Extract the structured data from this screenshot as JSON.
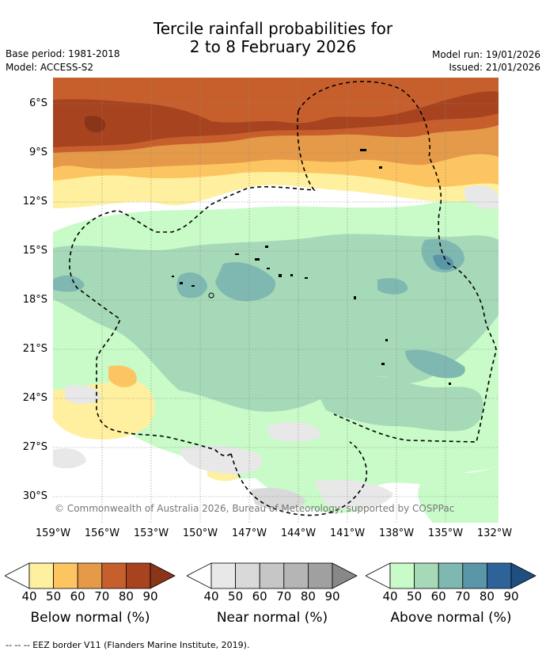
{
  "title": {
    "line1": "Tercile rainfall probabilities for",
    "line2": "2 to 8 February 2026"
  },
  "meta": {
    "base_period": "Base period: 1981-2018",
    "model": "Model: ACCESS-S2",
    "model_run": "Model run: 19/01/2026",
    "issued": "Issued: 21/01/2026"
  },
  "map": {
    "latitude_labels": [
      "6°S",
      "9°S",
      "12°S",
      "15°S",
      "18°S",
      "21°S",
      "24°S",
      "27°S",
      "30°S"
    ],
    "longitude_labels": [
      "159°W",
      "156°W",
      "153°W",
      "150°W",
      "147°W",
      "144°W",
      "141°W",
      "138°W",
      "135°W",
      "132°W"
    ],
    "lat_range": [
      4.2,
      31.5
    ],
    "lon_range": [
      -159,
      -131.9
    ],
    "copyright": "© Commonwealth of Australia 2026, Bureau of Meteorology, supported by COSPPac"
  },
  "colorbars": [
    {
      "name": "below",
      "label": "Below normal (%)",
      "ticks": [
        "40",
        "50",
        "60",
        "70",
        "80",
        "90"
      ],
      "colors": [
        "#fef09e",
        "#fdc561",
        "#e59a49",
        "#c75f2d",
        "#a8431f",
        "#8a3418"
      ]
    },
    {
      "name": "near",
      "label": "Near normal (%)",
      "ticks": [
        "40",
        "50",
        "60",
        "70",
        "80",
        "90"
      ],
      "colors": [
        "#e8e8e8",
        "#d9d9d9",
        "#c6c6c6",
        "#b5b5b5",
        "#a0a0a0",
        "#888888"
      ]
    },
    {
      "name": "above",
      "label": "Above normal (%)",
      "ticks": [
        "40",
        "50",
        "60",
        "70",
        "80",
        "90"
      ],
      "colors": [
        "#c8fbc8",
        "#a6d9b8",
        "#7fb8b0",
        "#5a96a8",
        "#2e6399",
        "#1f4f80"
      ]
    }
  ],
  "footnote": "-- -- -- EEZ border V11 (Flanders Marine Institute, 2019)."
}
